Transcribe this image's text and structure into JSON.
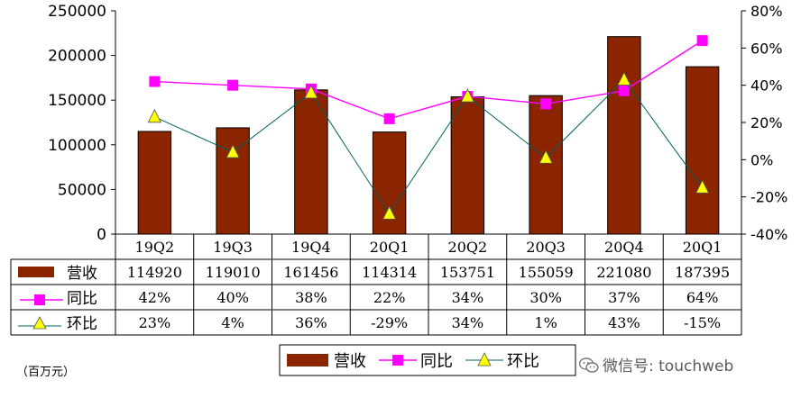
{
  "chart_data": {
    "type": "bar",
    "categories": [
      "19Q2",
      "19Q3",
      "19Q4",
      "20Q1",
      "20Q2",
      "20Q3",
      "20Q4",
      "20Q1"
    ],
    "series": [
      {
        "name": "营收",
        "kind": "bar",
        "axis": "left",
        "color": "#8b2500",
        "values": [
          114920,
          119010,
          161456,
          114314,
          153751,
          155059,
          221080,
          187395
        ]
      },
      {
        "name": "同比",
        "kind": "line",
        "axis": "right",
        "color": "#ff00ff",
        "marker": "square",
        "values": [
          0.42,
          0.4,
          0.38,
          0.22,
          0.34,
          0.3,
          0.37,
          0.64
        ]
      },
      {
        "name": "环比",
        "kind": "line",
        "axis": "right",
        "color": "#006060",
        "marker": "triangle",
        "marker_color": "#ffff00",
        "values": [
          0.23,
          0.04,
          0.36,
          -0.29,
          0.34,
          0.01,
          0.43,
          -0.15
        ]
      }
    ],
    "left_axis": {
      "min": 0,
      "max": 250000,
      "step": 50000,
      "tick_labels": [
        "0",
        "50000",
        "100000",
        "150000",
        "200000",
        "250000"
      ]
    },
    "right_axis": {
      "min": -0.4,
      "max": 0.8,
      "step": 0.2,
      "tick_labels": [
        "-40%",
        "-20%",
        "0%",
        "20%",
        "40%",
        "60%",
        "80%"
      ]
    },
    "table": {
      "rows": [
        {
          "series": "营收",
          "cells": [
            "114920",
            "119010",
            "161456",
            "114314",
            "153751",
            "155059",
            "221080",
            "187395"
          ]
        },
        {
          "series": "同比",
          "cells": [
            "42%",
            "40%",
            "38%",
            "22%",
            "34%",
            "30%",
            "37%",
            "64%"
          ]
        },
        {
          "series": "环比",
          "cells": [
            "23%",
            "4%",
            "36%",
            "-29%",
            "34%",
            "1%",
            "43%",
            "-15%"
          ]
        }
      ]
    },
    "legend": {
      "position": "bottom",
      "items": [
        "营收",
        "同比",
        "环比"
      ]
    },
    "grid": false
  },
  "unit_note": "（百万元）",
  "watermark": "微信号: touchweb"
}
